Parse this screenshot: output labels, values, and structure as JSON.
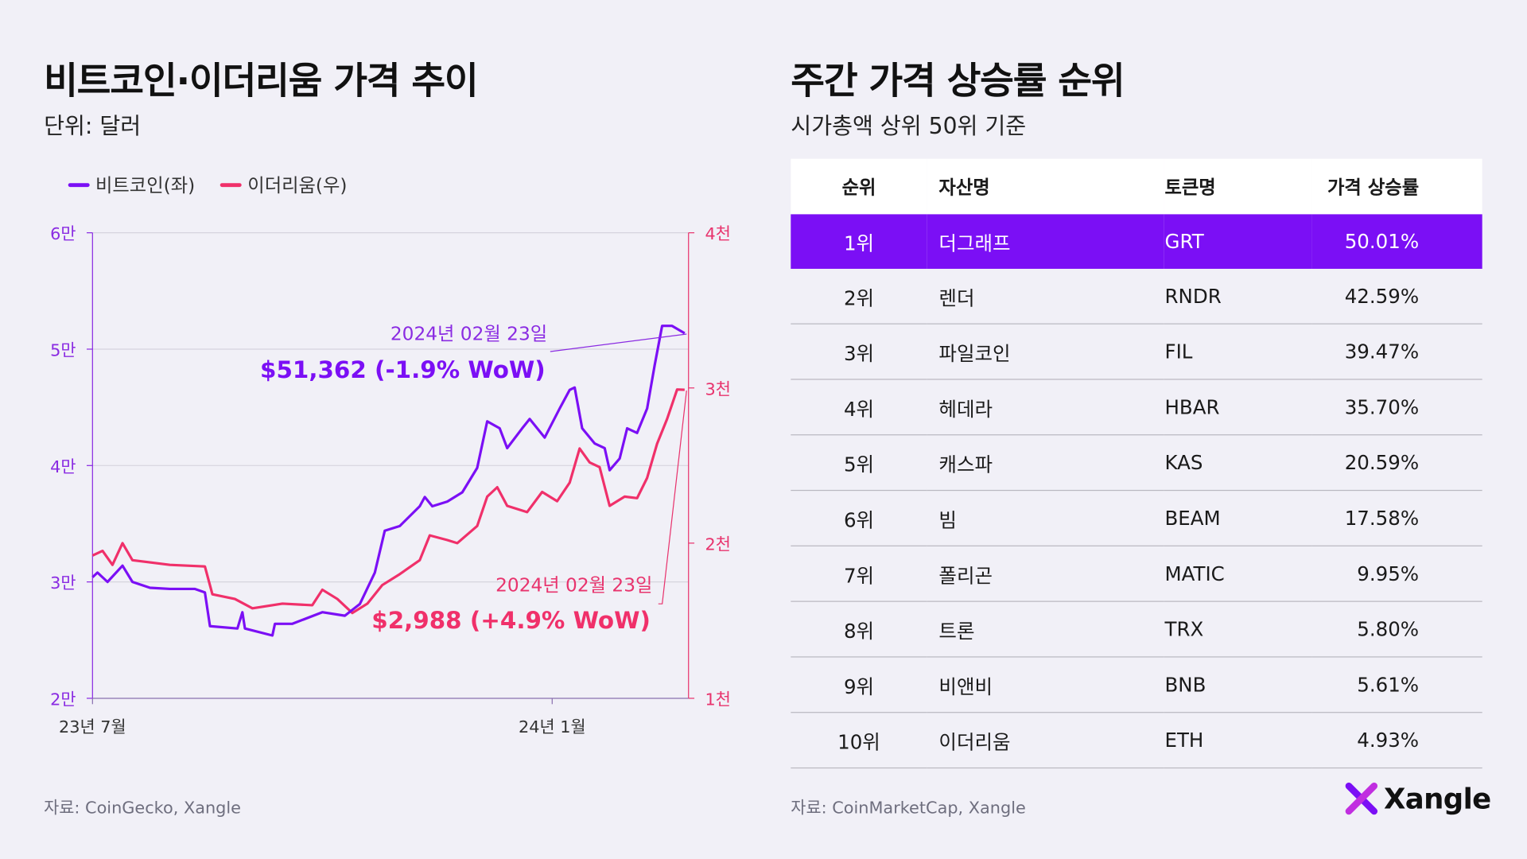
{
  "left": {
    "title": "비트코인·이더리움 가격 추이",
    "subtitle": "단위: 달러",
    "source": "자료: CoinGecko, Xangle"
  },
  "right": {
    "title": "주간 가격 상승률 순위",
    "subtitle": "시가총액 상위 50위 기준",
    "source": "자료: CoinMarketCap, Xangle"
  },
  "logo": {
    "text": "Xangle",
    "colors": [
      "#7b0ff5",
      "#e8336d"
    ]
  },
  "chart_data": {
    "type": "line",
    "xlim": [
      "2023-07-01",
      "2024-02-23"
    ],
    "x_ticks": [
      {
        "date": "2023-07-01",
        "label": "23년 7월"
      },
      {
        "date": "2024-01-01",
        "label": "24년 1월"
      }
    ],
    "y_left": {
      "lim": [
        20000,
        60000
      ],
      "ticks": [
        {
          "v": 20000,
          "label": "2만"
        },
        {
          "v": 30000,
          "label": "3만"
        },
        {
          "v": 40000,
          "label": "4만"
        },
        {
          "v": 50000,
          "label": "5만"
        },
        {
          "v": 60000,
          "label": "6만"
        }
      ]
    },
    "y_right": {
      "lim": [
        1000,
        4000
      ],
      "ticks": [
        {
          "v": 1000,
          "label": "1천"
        },
        {
          "v": 2000,
          "label": "2천"
        },
        {
          "v": 3000,
          "label": "3천"
        },
        {
          "v": 4000,
          "label": "4천"
        }
      ]
    },
    "grid": true,
    "legend_position": "top-left",
    "series": [
      {
        "name": "비트코인(좌)",
        "axis": "left",
        "color": "#7b0ff5",
        "points": [
          [
            "2023-07-01",
            30400
          ],
          [
            "2023-07-03",
            30800
          ],
          [
            "2023-07-07",
            30000
          ],
          [
            "2023-07-13",
            31400
          ],
          [
            "2023-07-17",
            30000
          ],
          [
            "2023-07-24",
            29500
          ],
          [
            "2023-08-01",
            29400
          ],
          [
            "2023-08-11",
            29400
          ],
          [
            "2023-08-15",
            29100
          ],
          [
            "2023-08-17",
            26200
          ],
          [
            "2023-08-28",
            26000
          ],
          [
            "2023-08-30",
            27400
          ],
          [
            "2023-08-31",
            26000
          ],
          [
            "2023-09-11",
            25400
          ],
          [
            "2023-09-12",
            26400
          ],
          [
            "2023-09-19",
            26400
          ],
          [
            "2023-10-01",
            27400
          ],
          [
            "2023-10-10",
            27100
          ],
          [
            "2023-10-16",
            28100
          ],
          [
            "2023-10-22",
            30800
          ],
          [
            "2023-10-26",
            34400
          ],
          [
            "2023-11-01",
            34800
          ],
          [
            "2023-11-09",
            36500
          ],
          [
            "2023-11-11",
            37300
          ],
          [
            "2023-11-14",
            36500
          ],
          [
            "2023-11-20",
            36900
          ],
          [
            "2023-11-26",
            37700
          ],
          [
            "2023-12-02",
            39800
          ],
          [
            "2023-12-06",
            43800
          ],
          [
            "2023-12-11",
            43200
          ],
          [
            "2023-12-14",
            41500
          ],
          [
            "2023-12-20",
            43200
          ],
          [
            "2023-12-23",
            44000
          ],
          [
            "2023-12-29",
            42400
          ],
          [
            "2024-01-04",
            44900
          ],
          [
            "2024-01-08",
            46500
          ],
          [
            "2024-01-10",
            46700
          ],
          [
            "2024-01-13",
            43200
          ],
          [
            "2024-01-18",
            41900
          ],
          [
            "2024-01-22",
            41500
          ],
          [
            "2024-01-24",
            39600
          ],
          [
            "2024-01-28",
            40600
          ],
          [
            "2024-01-31",
            43200
          ],
          [
            "2024-02-04",
            42800
          ],
          [
            "2024-02-08",
            44900
          ],
          [
            "2024-02-11",
            48600
          ],
          [
            "2024-02-14",
            52000
          ],
          [
            "2024-02-18",
            52000
          ],
          [
            "2024-02-22",
            51500
          ],
          [
            "2024-02-23",
            51362
          ]
        ]
      },
      {
        "name": "이더리움(우)",
        "axis": "right",
        "color": "#f0306a",
        "points": [
          [
            "2023-07-01",
            1920
          ],
          [
            "2023-07-05",
            1950
          ],
          [
            "2023-07-09",
            1860
          ],
          [
            "2023-07-13",
            2000
          ],
          [
            "2023-07-17",
            1890
          ],
          [
            "2023-08-01",
            1860
          ],
          [
            "2023-08-15",
            1850
          ],
          [
            "2023-08-18",
            1670
          ],
          [
            "2023-08-27",
            1640
          ],
          [
            "2023-09-03",
            1580
          ],
          [
            "2023-09-15",
            1610
          ],
          [
            "2023-09-27",
            1600
          ],
          [
            "2023-10-01",
            1700
          ],
          [
            "2023-10-07",
            1640
          ],
          [
            "2023-10-13",
            1550
          ],
          [
            "2023-10-19",
            1610
          ],
          [
            "2023-10-25",
            1730
          ],
          [
            "2023-11-01",
            1800
          ],
          [
            "2023-11-09",
            1890
          ],
          [
            "2023-11-13",
            2050
          ],
          [
            "2023-11-20",
            2020
          ],
          [
            "2023-11-24",
            2000
          ],
          [
            "2023-12-02",
            2110
          ],
          [
            "2023-12-06",
            2300
          ],
          [
            "2023-12-10",
            2360
          ],
          [
            "2023-12-14",
            2240
          ],
          [
            "2023-12-22",
            2200
          ],
          [
            "2023-12-28",
            2330
          ],
          [
            "2024-01-03",
            2270
          ],
          [
            "2024-01-08",
            2390
          ],
          [
            "2024-01-12",
            2610
          ],
          [
            "2024-01-16",
            2520
          ],
          [
            "2024-01-20",
            2490
          ],
          [
            "2024-01-24",
            2240
          ],
          [
            "2024-01-30",
            2300
          ],
          [
            "2024-02-04",
            2290
          ],
          [
            "2024-02-08",
            2420
          ],
          [
            "2024-02-12",
            2640
          ],
          [
            "2024-02-16",
            2800
          ],
          [
            "2024-02-20",
            2990
          ],
          [
            "2024-02-23",
            2988
          ]
        ]
      }
    ],
    "annotations": [
      {
        "series": "비트코인(좌)",
        "date_label": "2024년 02월 23일",
        "value_label": "$51,362 (-1.9% WoW)"
      },
      {
        "series": "이더리움(우)",
        "date_label": "2024년 02월 23일",
        "value_label": "$2,988 (+4.9% WoW)"
      }
    ]
  },
  "table": {
    "headers": [
      "순위",
      "자산명",
      "토큰명",
      "가격 상승률"
    ],
    "highlight_color": "#7b0ff5",
    "rows": [
      [
        "1위",
        "더그래프",
        "GRT",
        "50.01%"
      ],
      [
        "2위",
        "렌더",
        "RNDR",
        "42.59%"
      ],
      [
        "3위",
        "파일코인",
        "FIL",
        "39.47%"
      ],
      [
        "4위",
        "헤데라",
        "HBAR",
        "35.70%"
      ],
      [
        "5위",
        "캐스파",
        "KAS",
        "20.59%"
      ],
      [
        "6위",
        "빔",
        "BEAM",
        "17.58%"
      ],
      [
        "7위",
        "폴리곤",
        "MATIC",
        "9.95%"
      ],
      [
        "8위",
        "트론",
        "TRX",
        "5.80%"
      ],
      [
        "9위",
        "비앤비",
        "BNB",
        "5.61%"
      ],
      [
        "10위",
        "이더리움",
        "ETH",
        "4.93%"
      ]
    ]
  }
}
